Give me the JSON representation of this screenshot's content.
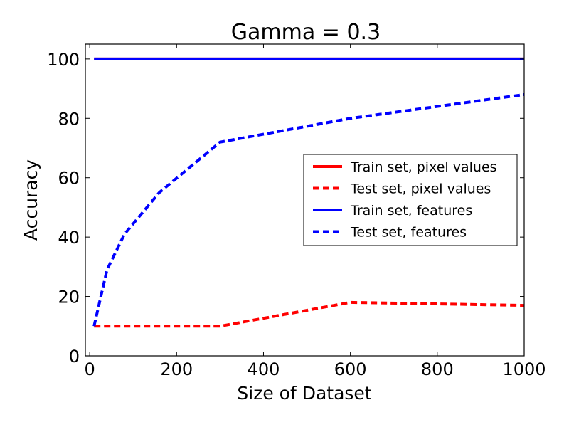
{
  "chart_data": {
    "type": "line",
    "title": "Gamma = 0.3",
    "xlabel": "Size of Dataset",
    "ylabel": "Accuracy",
    "xlim": [
      -10,
      1000
    ],
    "ylim": [
      0,
      105
    ],
    "xticks": [
      0,
      200,
      400,
      600,
      800,
      1000
    ],
    "yticks": [
      0,
      20,
      40,
      60,
      80,
      100
    ],
    "xtick_labels": [
      "0",
      "200",
      "400",
      "600",
      "800",
      "1000"
    ],
    "ytick_labels": [
      "0",
      "20",
      "40",
      "60",
      "80",
      "100"
    ],
    "grid": false,
    "legend_position": "center-right",
    "series": [
      {
        "name": "Train set, pixel values",
        "color": "#ff0000",
        "style": "solid",
        "x": [
          10,
          1000
        ],
        "y": [
          100,
          100
        ]
      },
      {
        "name": "Test set, pixel values",
        "color": "#ff0000",
        "style": "dashed",
        "x": [
          10,
          40,
          80,
          160,
          300,
          600,
          1000
        ],
        "y": [
          10,
          10,
          10,
          10,
          10,
          18,
          17
        ]
      },
      {
        "name": "Train set, features",
        "color": "#0000ff",
        "style": "solid",
        "x": [
          10,
          40,
          80,
          160,
          300,
          600,
          1000
        ],
        "y": [
          100,
          100,
          100,
          100,
          100,
          100,
          100
        ]
      },
      {
        "name": "Test set, features",
        "color": "#0000ff",
        "style": "dashed",
        "x": [
          10,
          40,
          80,
          160,
          300,
          600,
          1000
        ],
        "y": [
          10,
          29,
          41,
          55,
          72,
          80,
          88
        ]
      }
    ]
  }
}
